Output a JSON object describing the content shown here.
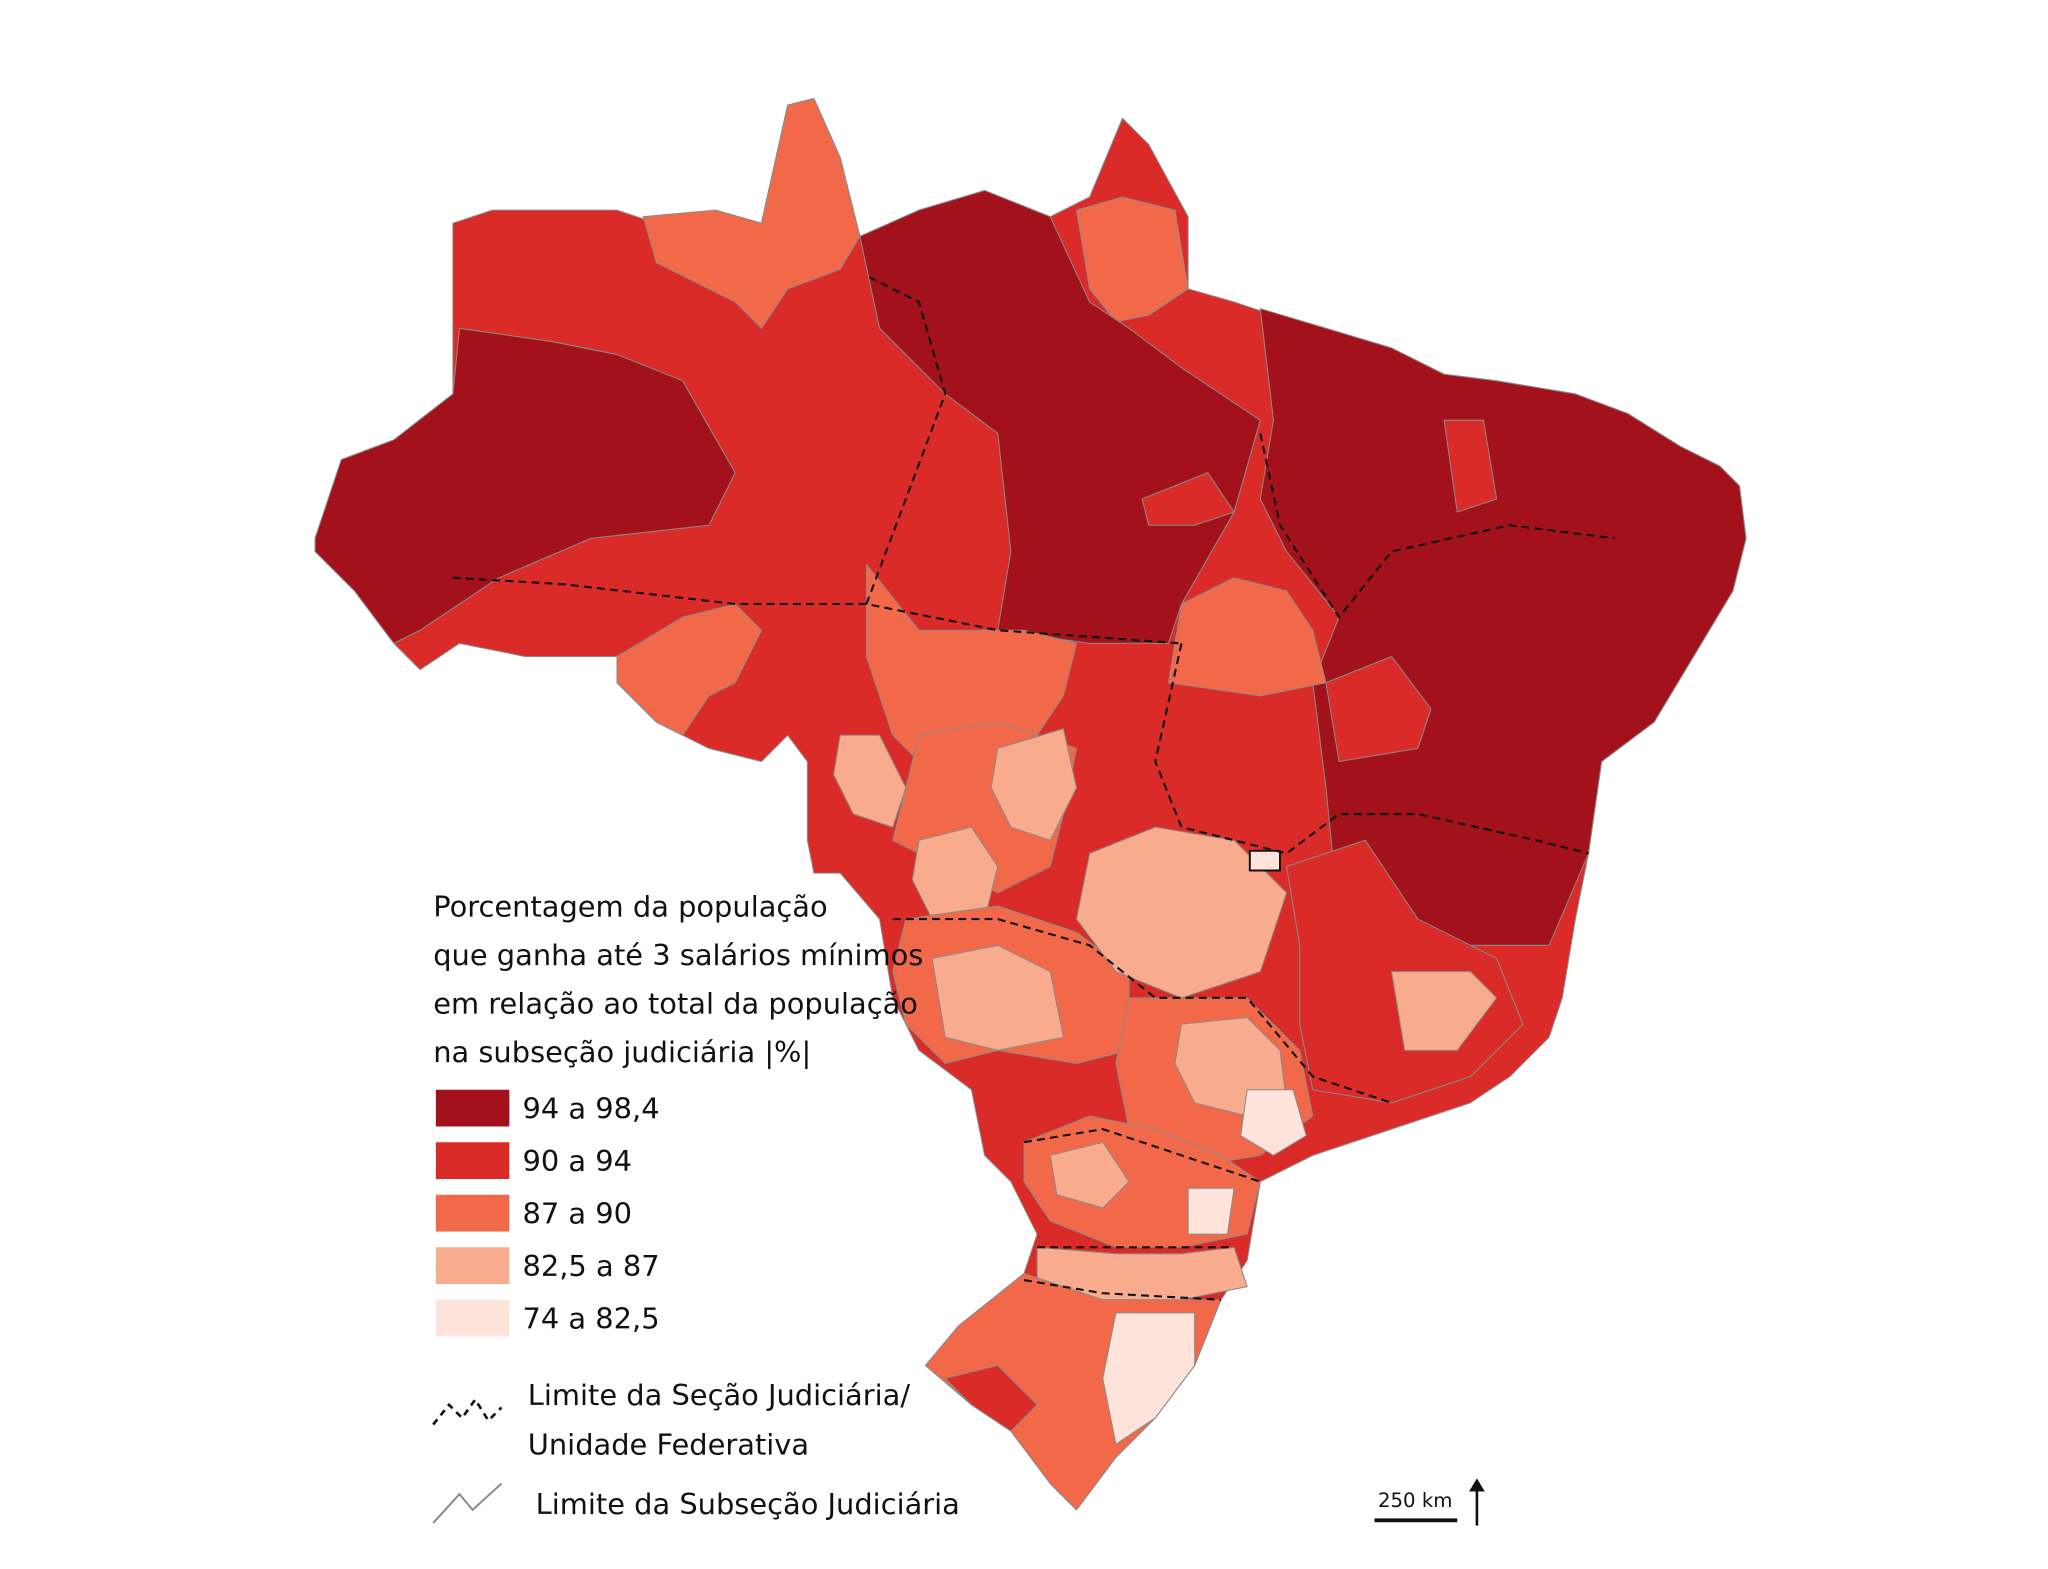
{
  "legend": {
    "title": [
      "Porcentagem da população",
      "que ganha até 3 salários mínimos",
      "em relação ao total da população",
      "na subseção judiciária |%|"
    ],
    "classes": [
      {
        "label": "94 a 98,4",
        "color": "#a3111a"
      },
      {
        "label": "90 a 94",
        "color": "#da2b28"
      },
      {
        "label": "87 a 90",
        "color": "#f2694a"
      },
      {
        "label": "82,5 a 87",
        "color": "#f9ab8d"
      },
      {
        "label": "74 a 82,5",
        "color": "#fde3d9"
      }
    ],
    "lines": [
      {
        "label": [
          "Limite da Seção Judiciária/",
          "Unidade Federativa"
        ]
      },
      {
        "label": [
          "Limite da Subseção Judiciária"
        ]
      }
    ]
  },
  "scale_bar": {
    "label": "250 km"
  }
}
